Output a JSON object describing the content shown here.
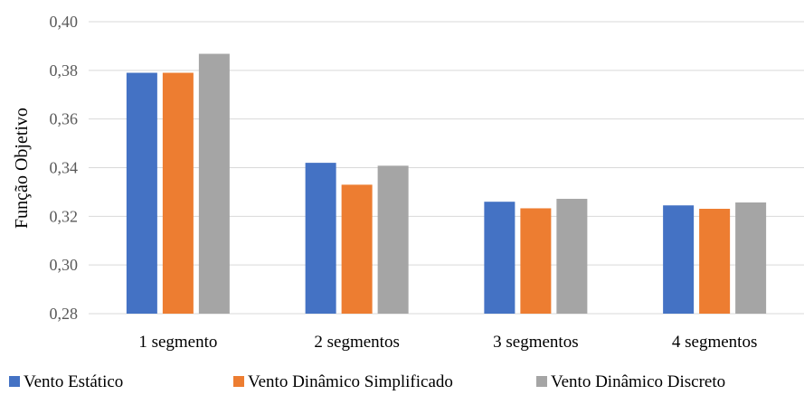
{
  "chart_data": {
    "type": "bar",
    "title": "",
    "xlabel": "",
    "ylabel": "Função Objetivo",
    "ylim": [
      0.28,
      0.4
    ],
    "yticks": [
      "0,28",
      "0,30",
      "0,32",
      "0,34",
      "0,36",
      "0,38",
      "0,40"
    ],
    "categories": [
      "1 segmento",
      "2 segmentos",
      "3 segmentos",
      "4 segmentos"
    ],
    "grid": true,
    "legend_position": "bottom",
    "series": [
      {
        "name": "Vento Estático",
        "color": "#4472C4",
        "values": [
          0.379,
          0.342,
          0.326,
          0.3245
        ]
      },
      {
        "name": "Vento Dinâmico Simplificado",
        "color": "#ED7D31",
        "values": [
          0.379,
          0.333,
          0.3233,
          0.3231
        ]
      },
      {
        "name": "Vento Dinâmico Discreto",
        "color": "#A5A5A5",
        "values": [
          0.3868,
          0.3408,
          0.3272,
          0.3257
        ]
      }
    ]
  }
}
